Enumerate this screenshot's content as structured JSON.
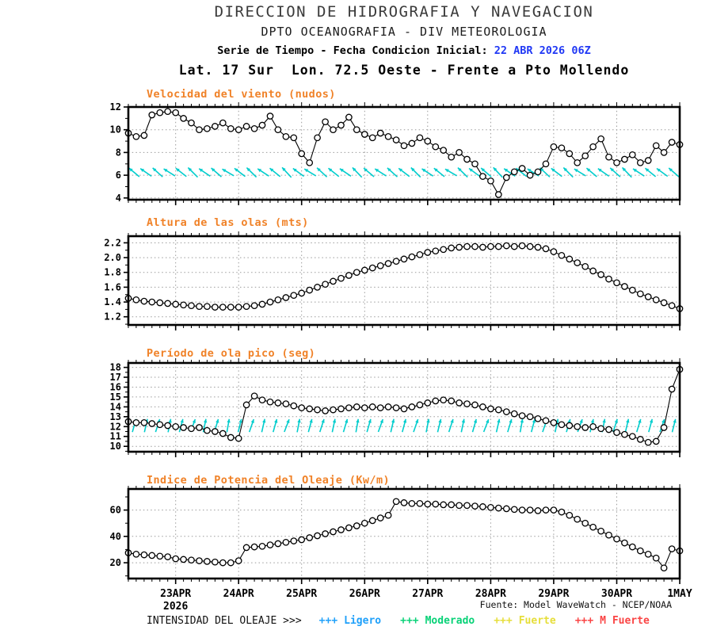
{
  "header": {
    "title": "DIRECCION DE HIDROGRAFIA Y NAVEGACION",
    "subtitle": "DPTO OCEANOGRAFIA - DIV METEOROLOGIA",
    "series_label": "Serie de Tiempo - Fecha Condicion Inicial: ",
    "init_datetime": "22 ABR 2026 06Z",
    "location": "Lat. 17 Sur  Lon. 72.5 Oeste - Frente a Pto Mollendo"
  },
  "colors": {
    "chart_title": "#F08228",
    "init_date": "#2038F5",
    "vector_cyan": "#00CDCD",
    "line": "#000000",
    "grid": "#9B9B9B"
  },
  "axis": {
    "x_tick_labels": [
      "23APR",
      "24APR",
      "25APR",
      "26APR",
      "27APR",
      "28APR",
      "29APR",
      "30APR",
      "1MAY"
    ],
    "x_tick_hours": [
      18,
      42,
      66,
      90,
      114,
      138,
      162,
      186,
      210
    ],
    "year_label": "2026",
    "total_hours": 210,
    "step_hours": 3,
    "x_minor_step_hours": 3
  },
  "source": "Fuente: Model WaveWatch - NCEP/NOAA",
  "legend": {
    "label": "INTENSIDAD DEL OLEAJE >>>",
    "items": [
      {
        "marker": "+++",
        "label": "Ligero",
        "color": "#1FA0FA"
      },
      {
        "marker": "+++",
        "label": "Moderado",
        "color": "#0AD278"
      },
      {
        "marker": "+++",
        "label": "Fuerte",
        "color": "#E6DE3A"
      },
      {
        "marker": "+++",
        "label": "M Fuerte",
        "color": "#FA4545"
      }
    ]
  },
  "chart_data": [
    {
      "type": "line",
      "title": "Velocidad del viento (nudos)",
      "ylabel": "nudos",
      "ylim": [
        3.85,
        12.0
      ],
      "yticks": [
        4,
        6,
        8,
        10,
        12
      ],
      "ytick_labels": [
        "4",
        "6",
        "8",
        "10",
        "12"
      ],
      "y_minor_step": 1,
      "grid": true,
      "marker": "open-circle",
      "values": [
        9.7,
        9.4,
        9.5,
        11.3,
        11.5,
        11.6,
        11.5,
        11.0,
        10.6,
        10.0,
        10.1,
        10.3,
        10.6,
        10.1,
        10.0,
        10.3,
        10.1,
        10.4,
        11.2,
        10.0,
        9.4,
        9.3,
        7.9,
        7.1,
        9.3,
        10.7,
        10.0,
        10.4,
        11.1,
        10.0,
        9.6,
        9.3,
        9.7,
        9.4,
        9.1,
        8.6,
        8.8,
        9.3,
        9.0,
        8.5,
        8.2,
        7.6,
        8.0,
        7.4,
        7.0,
        5.9,
        5.5,
        4.3,
        5.8,
        6.3,
        6.6,
        6.0,
        6.3,
        7.0,
        8.5,
        8.4,
        7.9,
        7.1,
        7.7,
        8.5,
        9.2,
        7.6,
        7.1,
        7.4,
        7.8,
        7.1,
        7.3,
        8.6,
        8.0,
        8.9,
        8.7
      ],
      "vectors": {
        "name": "wind-direction-arrows",
        "color": "#00CDCD",
        "center_value": 6.25,
        "angles_deg": [
          140,
          145,
          138,
          148,
          142,
          135,
          146,
          139,
          150,
          143,
          136,
          147,
          141,
          133,
          144,
          149,
          137,
          142,
          146,
          134,
          140,
          148,
          138,
          143,
          135,
          147,
          141,
          150,
          136,
          144,
          139,
          133,
          146,
          142,
          148,
          137,
          143,
          135,
          149,
          140,
          145,
          138,
          134,
          147,
          141,
          144,
          139
        ]
      }
    },
    {
      "type": "line",
      "title": "Altura de las olas (mts)",
      "ylabel": "mts",
      "ylim": [
        1.09,
        2.29
      ],
      "yticks": [
        1.2,
        1.4,
        1.6,
        1.8,
        2.0,
        2.2
      ],
      "ytick_labels": [
        "1.2",
        "1.4",
        "1.6",
        "1.8",
        "2.0",
        "2.2"
      ],
      "y_minor_step": 0.1,
      "grid": true,
      "marker": "open-circle",
      "values": [
        1.45,
        1.43,
        1.41,
        1.4,
        1.39,
        1.38,
        1.37,
        1.36,
        1.35,
        1.34,
        1.34,
        1.33,
        1.33,
        1.33,
        1.33,
        1.34,
        1.35,
        1.37,
        1.4,
        1.43,
        1.46,
        1.49,
        1.52,
        1.56,
        1.6,
        1.64,
        1.68,
        1.72,
        1.76,
        1.8,
        1.83,
        1.86,
        1.89,
        1.92,
        1.95,
        1.98,
        2.01,
        2.04,
        2.07,
        2.09,
        2.11,
        2.13,
        2.14,
        2.15,
        2.15,
        2.14,
        2.15,
        2.15,
        2.16,
        2.15,
        2.16,
        2.15,
        2.14,
        2.12,
        2.08,
        2.03,
        1.98,
        1.93,
        1.88,
        1.82,
        1.77,
        1.71,
        1.66,
        1.61,
        1.56,
        1.51,
        1.47,
        1.43,
        1.39,
        1.35,
        1.31
      ]
    },
    {
      "type": "line",
      "title": "Período de ola pico (seg)",
      "ylabel": "seg",
      "ylim": [
        9.45,
        18.45
      ],
      "yticks": [
        10,
        11,
        12,
        13,
        14,
        15,
        16,
        17,
        18
      ],
      "ytick_labels": [
        "10",
        "11",
        "12",
        "13",
        "14",
        "15",
        "16",
        "17",
        "18"
      ],
      "y_minor_step": 0.5,
      "grid": true,
      "marker": "open-circle",
      "values": [
        12.5,
        12.4,
        12.4,
        12.3,
        12.2,
        12.1,
        12.0,
        11.9,
        11.8,
        11.9,
        11.6,
        11.5,
        11.3,
        10.9,
        10.8,
        14.2,
        15.1,
        14.7,
        14.5,
        14.4,
        14.3,
        14.1,
        13.9,
        13.8,
        13.7,
        13.6,
        13.7,
        13.8,
        13.9,
        14.0,
        13.9,
        14.0,
        13.9,
        14.0,
        13.9,
        13.8,
        14.0,
        14.2,
        14.4,
        14.6,
        14.7,
        14.6,
        14.4,
        14.3,
        14.2,
        14.0,
        13.8,
        13.7,
        13.5,
        13.3,
        13.1,
        13.0,
        12.8,
        12.6,
        12.4,
        12.2,
        12.1,
        12.0,
        11.9,
        12.0,
        11.8,
        11.7,
        11.4,
        11.2,
        11.0,
        10.7,
        10.4,
        10.5,
        11.9,
        15.8,
        17.8
      ],
      "vectors": {
        "name": "swell-direction-arrows",
        "color": "#00CDCD",
        "center_value": 12.1,
        "angles_deg": [
          74,
          77,
          72,
          79,
          75,
          70,
          78,
          73,
          80,
          76,
          71,
          77,
          74,
          69,
          79,
          75,
          72,
          78,
          73,
          80,
          74,
          70,
          77,
          75,
          71,
          79,
          76,
          72,
          78,
          74,
          69,
          77,
          73,
          80,
          75,
          71,
          78,
          74,
          70,
          76,
          79,
          72,
          77,
          73,
          75,
          71,
          76
        ]
      }
    },
    {
      "type": "line",
      "title": "Indice de Potencia del Oleaje (Kw/m)",
      "ylabel": "Kw/m",
      "ylim": [
        8,
        76
      ],
      "yticks": [
        20,
        40,
        60
      ],
      "ytick_labels": [
        "20",
        "40",
        "60"
      ],
      "y_minor_step": 10,
      "grid": true,
      "marker": "open-circle",
      "values": [
        27.5,
        26.5,
        26,
        25.5,
        25,
        24.5,
        23,
        22.5,
        22,
        21.5,
        21,
        20.5,
        20,
        20,
        21.5,
        31.5,
        32,
        32.5,
        33.5,
        34.5,
        35.5,
        36.5,
        37.5,
        39,
        40.5,
        42,
        43.5,
        45,
        46.5,
        48,
        50,
        52,
        54,
        56,
        66.5,
        65.5,
        65,
        65,
        64.5,
        64.5,
        64,
        64,
        63.5,
        63.5,
        63,
        62.5,
        62,
        61.5,
        61,
        60.5,
        60,
        60,
        59.5,
        60,
        60,
        58.5,
        56,
        53,
        50,
        47,
        44,
        41,
        38,
        35,
        32,
        29,
        26.5,
        23.5,
        16,
        30.5,
        29
      ]
    }
  ]
}
